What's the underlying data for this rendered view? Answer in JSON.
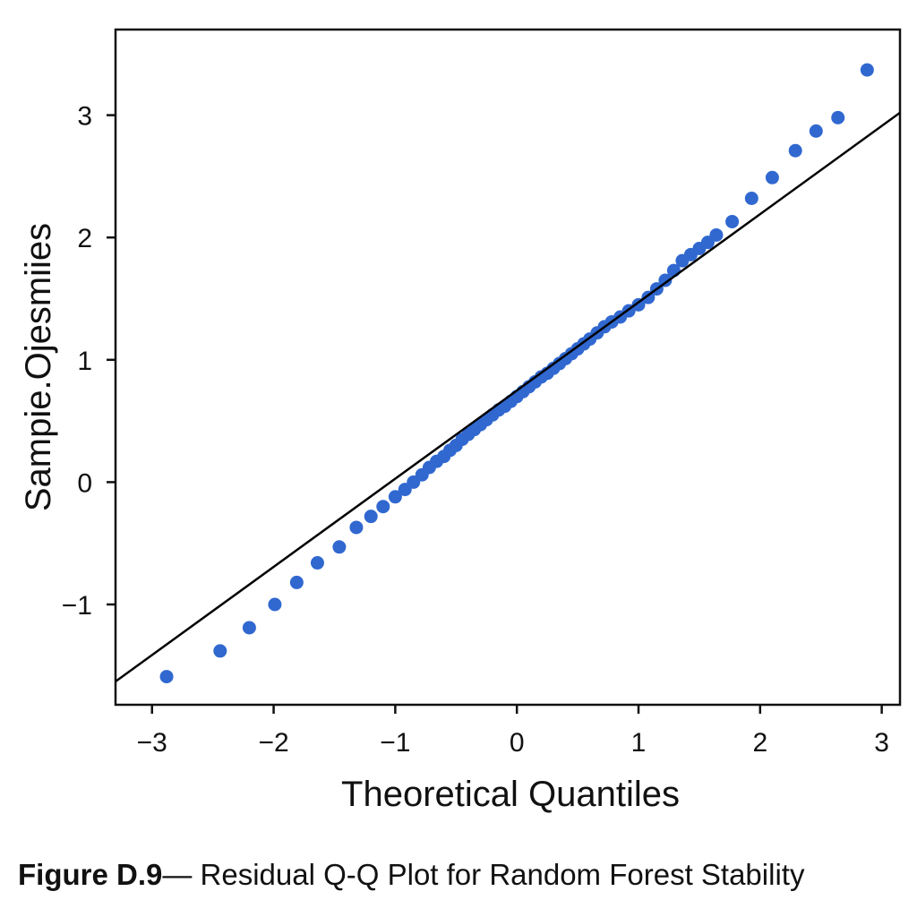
{
  "chart_data": {
    "type": "scatter",
    "xlabel": "Theoretical Quantiles",
    "ylabel": "Sampie.Ojesmiies",
    "xlim": [
      -3.3,
      3.15
    ],
    "ylim": [
      -1.82,
      3.7
    ],
    "grid": false,
    "legend": "none",
    "x_ticks": [
      {
        "value": -3,
        "label": "−3"
      },
      {
        "value": -2,
        "label": "−2"
      },
      {
        "value": -1,
        "label": "−1"
      },
      {
        "value": 0,
        "label": "0"
      },
      {
        "value": 1,
        "label": "1"
      },
      {
        "value": 2,
        "label": "2"
      },
      {
        "value": 3,
        "label": "3"
      }
    ],
    "y_ticks": [
      {
        "value": -1,
        "label": "−1"
      },
      {
        "value": 0,
        "label": "0"
      },
      {
        "value": 1,
        "label": "1"
      },
      {
        "value": 2,
        "label": "2"
      },
      {
        "value": 3,
        "label": "3"
      }
    ],
    "reference_line": {
      "x": [
        -3.3,
        3.15
      ],
      "y": [
        -1.63,
        3.02
      ],
      "color": "#000000"
    },
    "point_color": "#3068d0",
    "points": {
      "x": [
        -2.88,
        -2.44,
        -2.2,
        -1.99,
        -1.81,
        -1.64,
        -1.46,
        -1.32,
        -1.2,
        -1.1,
        -1.0,
        -0.92,
        -0.85,
        -0.78,
        -0.72,
        -0.66,
        -0.6,
        -0.55,
        -0.5,
        -0.45,
        -0.4,
        -0.35,
        -0.3,
        -0.25,
        -0.2,
        -0.15,
        -0.1,
        -0.05,
        0.0,
        0.05,
        0.1,
        0.15,
        0.2,
        0.25,
        0.3,
        0.35,
        0.4,
        0.45,
        0.5,
        0.55,
        0.6,
        0.66,
        0.72,
        0.78,
        0.85,
        0.92,
        1.0,
        1.08,
        1.15,
        1.22,
        1.29,
        1.36,
        1.43,
        1.5,
        1.57,
        1.64,
        1.77,
        1.93,
        2.1,
        2.29,
        2.46,
        2.64,
        2.88
      ],
      "y": [
        -1.59,
        -1.38,
        -1.19,
        -1.0,
        -0.82,
        -0.66,
        -0.53,
        -0.37,
        -0.28,
        -0.2,
        -0.12,
        -0.06,
        0.0,
        0.06,
        0.12,
        0.17,
        0.21,
        0.26,
        0.3,
        0.35,
        0.39,
        0.43,
        0.47,
        0.51,
        0.55,
        0.59,
        0.62,
        0.66,
        0.7,
        0.74,
        0.78,
        0.82,
        0.86,
        0.89,
        0.93,
        0.97,
        1.01,
        1.05,
        1.09,
        1.13,
        1.17,
        1.22,
        1.27,
        1.31,
        1.35,
        1.4,
        1.45,
        1.51,
        1.58,
        1.65,
        1.73,
        1.81,
        1.86,
        1.91,
        1.96,
        2.02,
        2.13,
        2.32,
        2.49,
        2.71,
        2.87,
        2.98,
        3.37
      ]
    }
  },
  "caption": {
    "label": "Figure D.9",
    "dash": "—",
    "text": "Residual  Q-Q Plot for  Random Forest Stability"
  }
}
